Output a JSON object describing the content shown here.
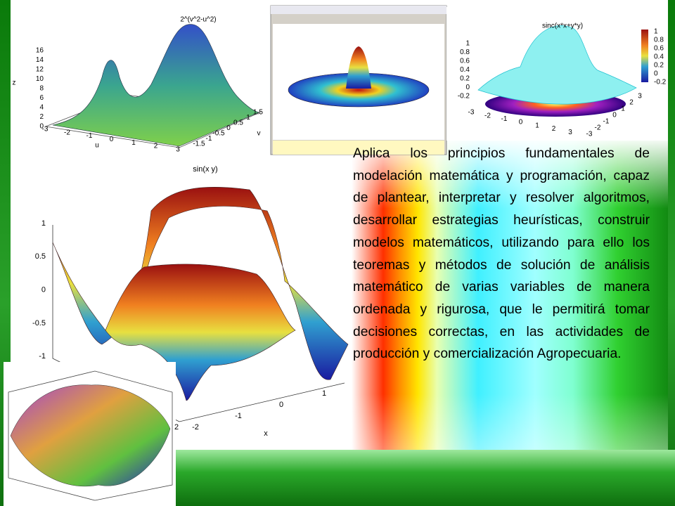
{
  "slide": {
    "figures": [
      {
        "title": "2^(v^2-u^2)",
        "z_label": "z",
        "u_label": "u",
        "v_label": "v",
        "z_ticks": [
          "16",
          "14",
          "12",
          "10",
          "8",
          "6",
          "4",
          "2",
          "0"
        ],
        "u_ticks": [
          "-3",
          "-2",
          "-1",
          "0",
          "1",
          "2",
          "3"
        ],
        "v_ticks": [
          "1.5",
          "1",
          "0.5",
          "0",
          "-0.5",
          "-1",
          "-1.5"
        ]
      },
      {
        "title": "sinc(x*x+y*y)",
        "colorbar_ticks": [
          "1",
          "0.8",
          "0.6",
          "0.4",
          "0.2",
          "0",
          "-0.2"
        ],
        "z_ticks": [
          "1",
          "0.8",
          "0.6",
          "0.4",
          "0.2",
          "0",
          "-0.2"
        ],
        "x_ticks": [
          "-3",
          "-2",
          "-1",
          "0",
          "1",
          "2",
          "3"
        ],
        "y_ticks": [
          "3",
          "2",
          "1",
          "0",
          "-1",
          "-2",
          "-3"
        ]
      },
      {
        "title": "sin(x y)",
        "x_label": "x",
        "z_ticks": [
          "1",
          "0.5",
          "0",
          "-0.5",
          "-1"
        ],
        "x_ticks": [
          "-2",
          "-1",
          "0",
          "1"
        ],
        "y_edge_tick": "2"
      }
    ],
    "paragraph": "Aplica los principios fundamentales de modelación matemática y programación, capaz de plantear, interpretar y resolver algoritmos, desarrollar estrategias heurísticas, construir modelos matemáticos, utilizando para ello los teoremas y métodos de solución de análisis matemático de varias variables de manera ordenada y rigurosa, que le permitirá tomar decisiones correctas, en las actividades de producción y comercialización Agropecuaria."
  }
}
